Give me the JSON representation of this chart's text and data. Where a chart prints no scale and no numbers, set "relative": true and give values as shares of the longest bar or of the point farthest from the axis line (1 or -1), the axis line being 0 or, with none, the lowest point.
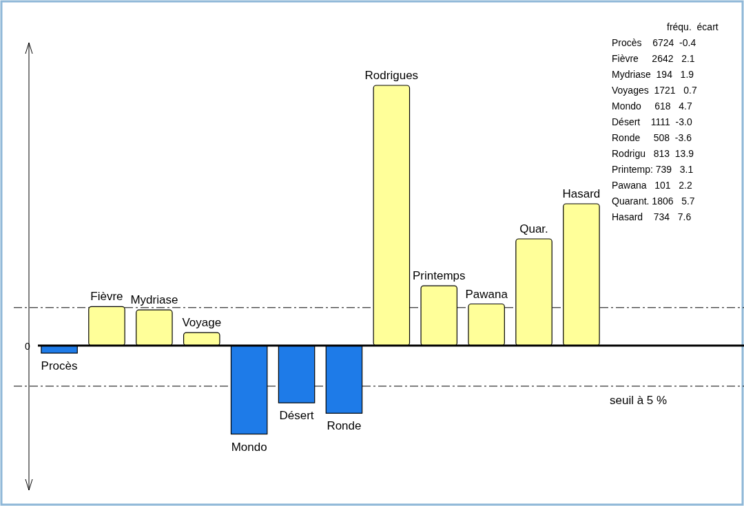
{
  "chart_data": {
    "type": "bar",
    "relative": true,
    "categories": [
      "Procès",
      "Fièvre",
      "Mydriase",
      "Voyage",
      "Mondo",
      "Désert",
      "Ronde",
      "Rodrigues",
      "Printemps",
      "Pawana",
      "Quar.",
      "Hasard"
    ],
    "values": [
      -0.029,
      0.15,
      0.137,
      0.05,
      -0.34,
      -0.22,
      -0.26,
      1,
      0.23,
      0.16,
      0.41,
      0.545
    ],
    "colors": [
      "#1e7be8",
      "#ffff99",
      "#ffff99",
      "#ffff99",
      "#1e7be8",
      "#1e7be8",
      "#1e7be8",
      "#ffff99",
      "#ffff99",
      "#ffff99",
      "#ffff99",
      "#ffff99"
    ],
    "ref_lines": [
      {
        "axis": "y",
        "value": 0.146,
        "label": null,
        "line_style": "dashed",
        "color": "#000000"
      },
      {
        "axis": "y",
        "value": -0.156,
        "label": "seuil à 5 %",
        "line_style": "dashed",
        "color": "#000000"
      }
    ],
    "annotations": [
      "0",
      "fréqu.  écart",
      "Procès    6724  -0.4",
      "Fièvre     2642   2.1",
      "Mydriase  194   1.9",
      "Voyages  1721   0.7",
      "Mondo     618   4.7",
      "Désert    1111  -3.0",
      "Ronde     508  -3.6",
      "Rodrigu   813  13.9",
      "Printemp: 739   3.1",
      "Pawana   101   2.2",
      "Quarant. 1806   5.7",
      "Hasard    734   7.6"
    ]
  }
}
